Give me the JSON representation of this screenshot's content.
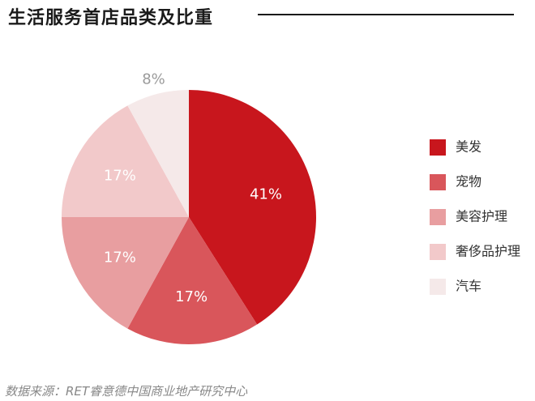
{
  "header": {
    "title": "生活服务首店品类及比重"
  },
  "chart_data": {
    "type": "pie",
    "slices": [
      {
        "name": "美发",
        "value": 41,
        "label": "41%",
        "color": "#c8161d"
      },
      {
        "name": "宠物",
        "value": 17,
        "label": "17%",
        "color": "#d9565b"
      },
      {
        "name": "美容护理",
        "value": 17,
        "label": "17%",
        "color": "#e89ea0"
      },
      {
        "name": "奢侈品护理",
        "value": 17,
        "label": "17%",
        "color": "#f2c9ca"
      },
      {
        "name": "汽车",
        "value": 8,
        "label": "8%",
        "color": "#f5e9e9"
      }
    ],
    "legend_position": "right"
  },
  "footer": {
    "source": "数据来源：RET睿意德中国商业地产研究中心"
  }
}
